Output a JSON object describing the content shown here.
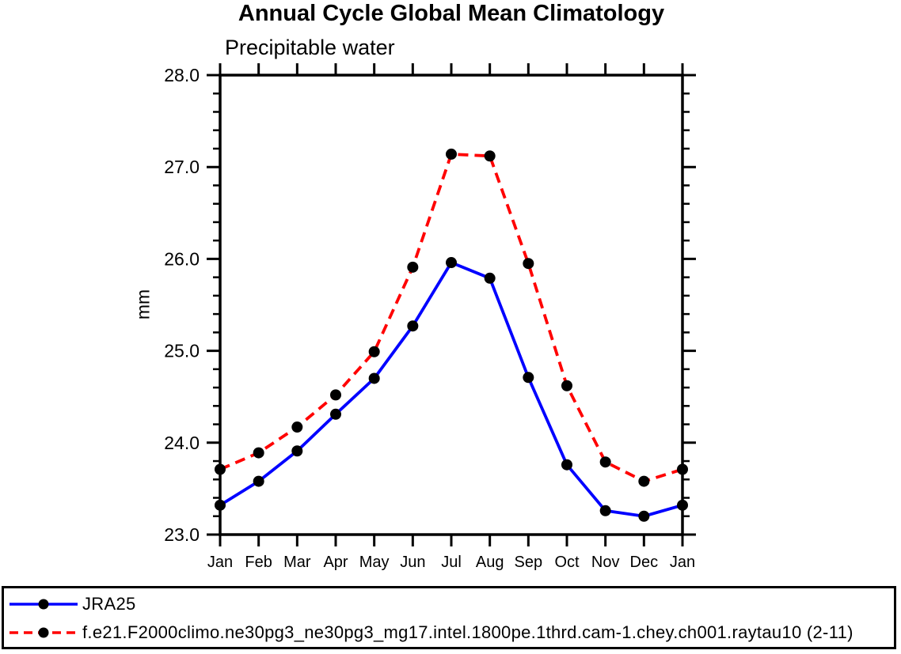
{
  "chart_data": {
    "type": "line",
    "title": "Annual Cycle Global Mean Climatology",
    "subtitle": "Precipitable water",
    "xlabel": "",
    "ylabel": "mm",
    "categories": [
      "Jan",
      "Feb",
      "Mar",
      "Apr",
      "May",
      "Jun",
      "Jul",
      "Aug",
      "Sep",
      "Oct",
      "Nov",
      "Dec",
      "Jan"
    ],
    "series": [
      {
        "name": "JRA25",
        "color": "#0000ff",
        "line_style": "solid",
        "marker": "circle",
        "marker_color": "#000000",
        "values": [
          23.32,
          23.58,
          23.91,
          24.31,
          24.7,
          25.27,
          25.96,
          25.79,
          24.71,
          23.76,
          23.26,
          23.2,
          23.32
        ]
      },
      {
        "name": "f.e21.F2000climo.ne30pg3_ne30pg3_mg17.intel.1800pe.1thrd.cam-1.chey.ch001.raytau10 (2-11)",
        "color": "#ff0000",
        "line_style": "dashed",
        "marker": "circle",
        "marker_color": "#000000",
        "values": [
          23.71,
          23.89,
          24.17,
          24.52,
          24.99,
          25.91,
          27.14,
          27.12,
          25.95,
          24.62,
          23.79,
          23.58,
          23.71
        ]
      }
    ],
    "ylim": [
      23.0,
      28.0
    ],
    "yticks": {
      "values": [
        23,
        24,
        25,
        26,
        27,
        28
      ],
      "labels": [
        "23.0",
        "24.0",
        "25.0",
        "26.0",
        "27.0",
        "28.0"
      ]
    },
    "ytick_minor_step": 0.2,
    "grid": false,
    "legend_position": "bottom",
    "axis_color": "#000000"
  }
}
